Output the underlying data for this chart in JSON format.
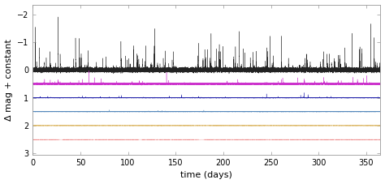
{
  "title": "",
  "xlabel": "time (days)",
  "ylabel": "Δ mag + constant",
  "xlim": [
    0,
    365
  ],
  "ylim": [
    3.05,
    -2.35
  ],
  "yticks": [
    -2,
    -1,
    0,
    1,
    2,
    3
  ],
  "xticks": [
    0,
    50,
    100,
    150,
    200,
    250,
    300,
    350
  ],
  "n_points": 52560,
  "offsets": [
    0.0,
    0.5,
    1.0,
    1.5,
    2.0,
    2.5
  ],
  "flare_rates": [
    180,
    80,
    30,
    8,
    2,
    0.5
  ],
  "flare_max_amps": [
    1.9,
    0.55,
    0.22,
    0.12,
    0.04,
    0.015
  ],
  "flare_typical_amps": [
    0.35,
    0.1,
    0.05,
    0.02,
    0.008,
    0.003
  ],
  "base_noise": [
    0.035,
    0.012,
    0.005,
    0.003,
    0.0015,
    0.001
  ],
  "flare_decay_points": [
    15,
    12,
    8,
    6,
    5,
    4
  ],
  "colors": [
    "#222222",
    "#cc33cc",
    "#2222aa",
    "#5588bb",
    "#ddb96a",
    "#ee8888"
  ],
  "linewidths": [
    0.25,
    0.25,
    0.25,
    0.25,
    0.25,
    0.25
  ],
  "background_color": "#ffffff",
  "figsize": [
    4.74,
    2.27
  ],
  "dpi": 100
}
